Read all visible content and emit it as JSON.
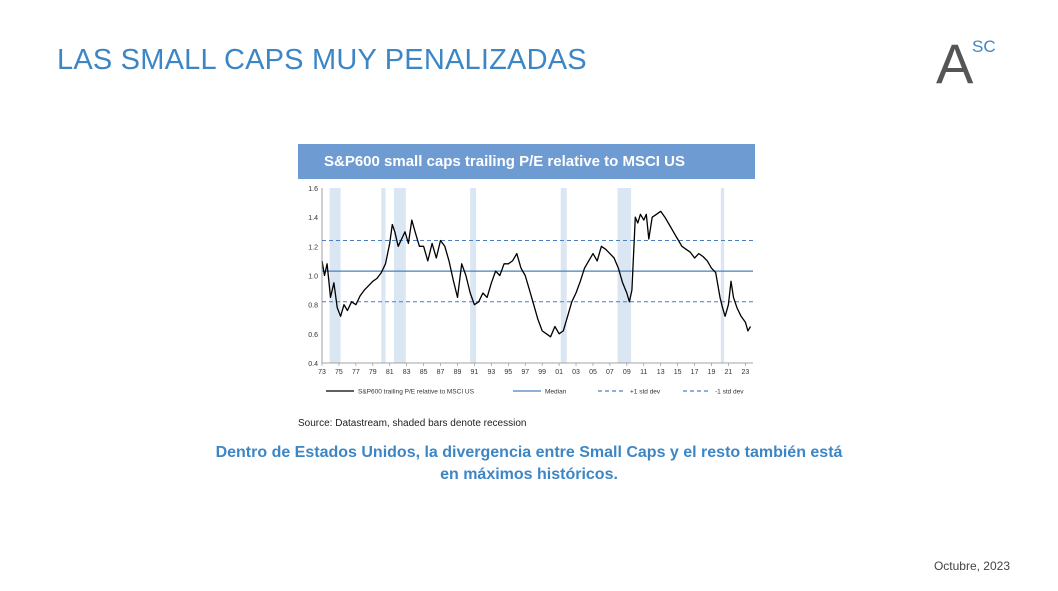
{
  "slide": {
    "title": "LAS SMALL CAPS MUY PENALIZADAS",
    "caption_line1": "Dentro de Estados Unidos, la divergencia entre Small Caps y el resto también está",
    "caption_line2": "en máximos históricos.",
    "date": "Octubre, 2023"
  },
  "logo": {
    "letter": "A",
    "superscript": "SC"
  },
  "chart_data": {
    "type": "line",
    "title": "S&P600 small caps trailing P/E relative to MSCI US",
    "source": "Source: Datastream, shaded bars denote recession",
    "ylim": [
      0.4,
      1.6
    ],
    "xlim": [
      1973,
      2023.9
    ],
    "y_ticks": [
      "0.4",
      "0.6",
      "0.8",
      "1.0",
      "1.2",
      "1.4",
      "1.6"
    ],
    "x_ticks": [
      "73",
      "75",
      "77",
      "79",
      "81",
      "83",
      "85",
      "87",
      "89",
      "91",
      "93",
      "95",
      "97",
      "99",
      "01",
      "03",
      "05",
      "07",
      "09",
      "11",
      "13",
      "15",
      "17",
      "19",
      "21",
      "23"
    ],
    "recessions": [
      [
        1973.9,
        1975.2
      ],
      [
        1980.0,
        1980.5
      ],
      [
        1981.5,
        1982.9
      ],
      [
        1990.5,
        1991.2
      ],
      [
        2001.2,
        2001.9
      ],
      [
        2007.9,
        2009.5
      ],
      [
        2020.1,
        2020.5
      ]
    ],
    "median": 1.03,
    "plus_1_std": 1.24,
    "minus_1_std": 0.82,
    "series": [
      {
        "name": "S&P600 trailing P/E relative to MSCI US",
        "color": "#000000",
        "x": [
          1973.0,
          1973.3,
          1973.6,
          1974.0,
          1974.4,
          1974.8,
          1975.2,
          1975.6,
          1976.0,
          1976.5,
          1977.0,
          1977.5,
          1978.0,
          1978.5,
          1979.0,
          1979.5,
          1980.0,
          1980.5,
          1981.0,
          1981.3,
          1981.6,
          1982.0,
          1982.4,
          1982.8,
          1983.2,
          1983.6,
          1984.0,
          1984.5,
          1985.0,
          1985.5,
          1986.0,
          1986.5,
          1987.0,
          1987.5,
          1988.0,
          1988.5,
          1989.0,
          1989.5,
          1990.0,
          1990.5,
          1991.0,
          1991.5,
          1992.0,
          1992.5,
          1993.0,
          1993.5,
          1994.0,
          1994.5,
          1995.0,
          1995.5,
          1996.0,
          1996.5,
          1997.0,
          1997.5,
          1998.0,
          1998.5,
          1999.0,
          1999.5,
          2000.0,
          2000.5,
          2001.0,
          2001.5,
          2002.0,
          2002.5,
          2003.0,
          2003.5,
          2004.0,
          2004.5,
          2005.0,
          2005.5,
          2006.0,
          2006.5,
          2007.0,
          2007.5,
          2008.0,
          2008.5,
          2009.0,
          2009.3,
          2009.6,
          2010.0,
          2010.3,
          2010.6,
          2011.0,
          2011.3,
          2011.6,
          2012.0,
          2012.5,
          2013.0,
          2013.5,
          2014.0,
          2014.5,
          2015.0,
          2015.5,
          2016.0,
          2016.5,
          2017.0,
          2017.5,
          2018.0,
          2018.5,
          2019.0,
          2019.5,
          2020.0,
          2020.3,
          2020.6,
          2021.0,
          2021.3,
          2021.6,
          2022.0,
          2022.5,
          2023.0,
          2023.3,
          2023.6
        ],
        "y": [
          1.1,
          1.0,
          1.08,
          0.85,
          0.95,
          0.78,
          0.72,
          0.8,
          0.76,
          0.82,
          0.8,
          0.86,
          0.9,
          0.93,
          0.96,
          0.98,
          1.02,
          1.08,
          1.22,
          1.35,
          1.3,
          1.2,
          1.25,
          1.3,
          1.22,
          1.38,
          1.3,
          1.2,
          1.2,
          1.1,
          1.22,
          1.12,
          1.24,
          1.2,
          1.1,
          0.97,
          0.85,
          1.08,
          1.0,
          0.88,
          0.8,
          0.82,
          0.88,
          0.85,
          0.95,
          1.03,
          1.0,
          1.08,
          1.08,
          1.1,
          1.15,
          1.05,
          1.0,
          0.9,
          0.8,
          0.7,
          0.62,
          0.6,
          0.58,
          0.65,
          0.6,
          0.62,
          0.72,
          0.82,
          0.88,
          0.96,
          1.05,
          1.1,
          1.15,
          1.1,
          1.2,
          1.18,
          1.15,
          1.12,
          1.05,
          0.95,
          0.88,
          0.82,
          0.9,
          1.4,
          1.36,
          1.42,
          1.38,
          1.42,
          1.25,
          1.4,
          1.42,
          1.44,
          1.4,
          1.35,
          1.3,
          1.25,
          1.2,
          1.18,
          1.16,
          1.12,
          1.15,
          1.13,
          1.1,
          1.05,
          1.02,
          0.85,
          0.78,
          0.72,
          0.8,
          0.96,
          0.85,
          0.78,
          0.72,
          0.68,
          0.62,
          0.65
        ]
      },
      {
        "name": "Median",
        "color": "#4a7fc1"
      },
      {
        "name": "+1 std dev",
        "color": "#4a7fc1"
      },
      {
        "name": "-1 std dev",
        "color": "#4a7fc1"
      }
    ]
  }
}
